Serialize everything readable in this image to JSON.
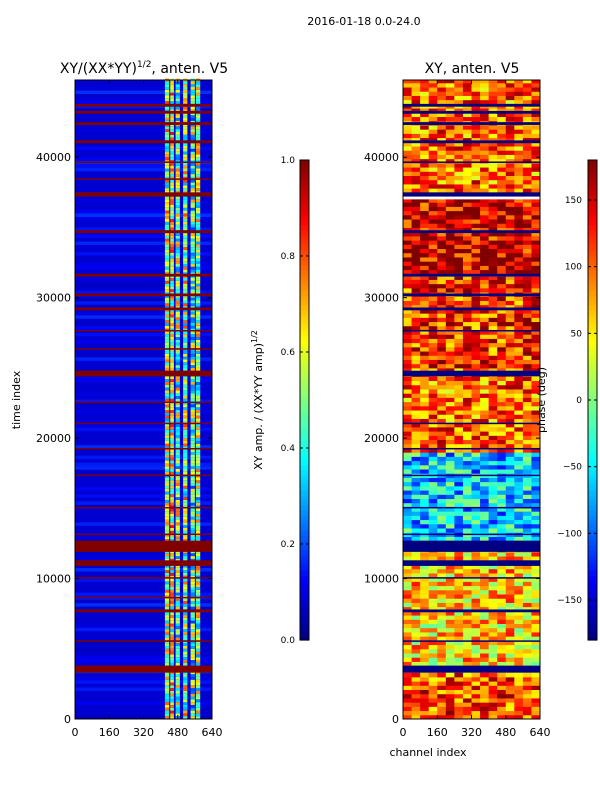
{
  "figure": {
    "suptitle": "2016-01-18 0.0-24.0",
    "xlabel": "channel index"
  },
  "chart_data": [
    {
      "type": "heatmap",
      "title_main": "XY/(XX*YY)",
      "title_sup": "1/2",
      "title_tail": ", anten. V5",
      "xlabel": "",
      "ylabel": "time index",
      "xlim": [
        0,
        640
      ],
      "ylim": [
        0,
        45500
      ],
      "xticks": [
        "0",
        "160",
        "320",
        "480",
        "640"
      ],
      "xtick_values": [
        0,
        160,
        320,
        480,
        640
      ],
      "yticks": [
        "0",
        "10000",
        "20000",
        "30000",
        "40000"
      ],
      "ytick_values": [
        0,
        10000,
        20000,
        30000,
        40000
      ],
      "colormap": "jet",
      "background_value": 0.08,
      "flagged_value": 1.0,
      "flagged_rows": [
        [
          3300,
          3800
        ],
        [
          5500,
          5600
        ],
        [
          7600,
          7800
        ],
        [
          8600,
          8700
        ],
        [
          10000,
          10100
        ],
        [
          10900,
          11300
        ],
        [
          11900,
          12700
        ],
        [
          13100,
          13200
        ],
        [
          15000,
          15100
        ],
        [
          17300,
          17400
        ],
        [
          19200,
          19300
        ],
        [
          21000,
          21100
        ],
        [
          22500,
          22600
        ],
        [
          24400,
          24800
        ],
        [
          26300,
          26400
        ],
        [
          27600,
          27700
        ],
        [
          29100,
          29300
        ],
        [
          30100,
          30300
        ],
        [
          31500,
          31700
        ],
        [
          34600,
          34800
        ],
        [
          37200,
          37500
        ],
        [
          38400,
          38500
        ],
        [
          39600,
          39700
        ],
        [
          41000,
          41200
        ],
        [
          42300,
          42500
        ],
        [
          43100,
          43300
        ],
        [
          43600,
          43800
        ]
      ],
      "active_channels": [
        {
          "x": [
            420,
            440
          ],
          "value": 0.55
        },
        {
          "x": [
            445,
            462
          ],
          "value": 0.6
        },
        {
          "x": [
            470,
            490
          ],
          "value": 0.5
        },
        {
          "x": [
            505,
            525
          ],
          "value": 0.55
        },
        {
          "x": [
            540,
            560
          ],
          "value": 0.45
        },
        {
          "x": [
            565,
            585
          ],
          "value": 0.5
        }
      ],
      "colorbar": {
        "label_main": "XY amp. / (XX*YY amp)",
        "label_sup": "1/2",
        "range": [
          0.0,
          1.0
        ],
        "ticks": [
          "0.0",
          "0.2",
          "0.4",
          "0.6",
          "0.8",
          "1.0"
        ],
        "tick_values": [
          0.0,
          0.2,
          0.4,
          0.6,
          0.8,
          1.0
        ]
      }
    },
    {
      "type": "heatmap",
      "title_main": "XY, anten. V5",
      "xlabel": "channel index",
      "ylabel": "",
      "xlim": [
        0,
        640
      ],
      "ylim": [
        0,
        45500
      ],
      "xticks": [
        "0",
        "160",
        "320",
        "480",
        "640"
      ],
      "xtick_values": [
        0,
        160,
        320,
        480,
        640
      ],
      "yticks": [
        "0",
        "10000",
        "20000",
        "30000",
        "40000"
      ],
      "ytick_values": [
        0,
        10000,
        20000,
        30000,
        40000
      ],
      "colormap": "jet",
      "flagged_value": -180,
      "flagged_rows": [
        [
          3300,
          3800
        ],
        [
          5500,
          5600
        ],
        [
          7600,
          7800
        ],
        [
          10000,
          10100
        ],
        [
          10900,
          11300
        ],
        [
          11900,
          12700
        ],
        [
          13100,
          13200
        ],
        [
          15000,
          15100
        ],
        [
          17300,
          17400
        ],
        [
          19200,
          19300
        ],
        [
          21000,
          21100
        ],
        [
          24400,
          24800
        ],
        [
          27600,
          27700
        ],
        [
          29100,
          29300
        ],
        [
          30100,
          30300
        ],
        [
          31500,
          31700
        ],
        [
          34600,
          34800
        ],
        [
          37200,
          37500
        ],
        [
          39600,
          39700
        ],
        [
          41000,
          41200
        ],
        [
          42300,
          42500
        ],
        [
          43100,
          43300
        ],
        [
          43600,
          43800
        ]
      ],
      "phase_bands": [
        {
          "y": [
            0,
            3300
          ],
          "value": 110
        },
        {
          "y": [
            3800,
            12000
          ],
          "value": 60
        },
        {
          "y": [
            12700,
            19000
          ],
          "value": -60
        },
        {
          "y": [
            19000,
            25000
          ],
          "value": 100
        },
        {
          "y": [
            25000,
            31500
          ],
          "value": 120
        },
        {
          "y": [
            31700,
            37000
          ],
          "value": 150
        },
        {
          "y": [
            37500,
            45500
          ],
          "value": 100
        }
      ],
      "colorbar": {
        "label_main": "phase (deg)",
        "range": [
          -180,
          180
        ],
        "ticks": [
          "−150",
          "−100",
          "−50",
          "0",
          "50",
          "100",
          "150"
        ],
        "tick_values": [
          -150,
          -100,
          -50,
          0,
          50,
          100,
          150
        ]
      }
    }
  ]
}
